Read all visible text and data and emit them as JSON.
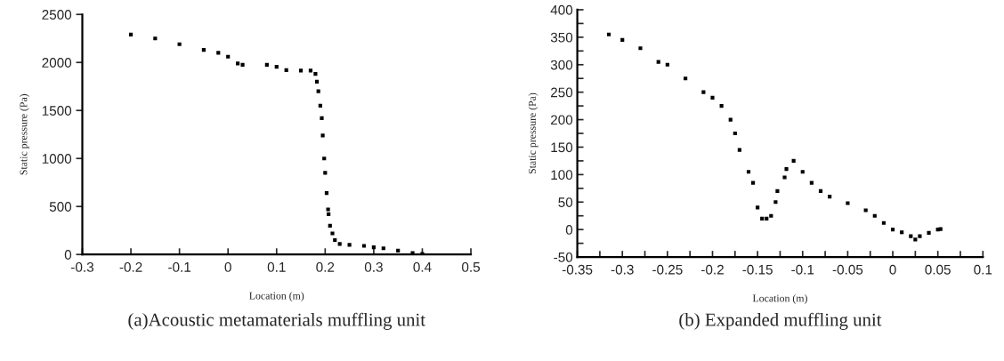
{
  "chart_data": [
    {
      "type": "scatter",
      "title": "(a)Acoustic metamaterials muffling unit",
      "xlabel": "Location (m)",
      "ylabel": "Static pressure (Pa)",
      "marker": "square",
      "grid": false,
      "xlim": [
        -0.3,
        0.5
      ],
      "xticks": [
        -0.3,
        -0.2,
        -0.1,
        0,
        0.1,
        0.2,
        0.3,
        0.4,
        0.5
      ],
      "ylim": [
        0,
        2500
      ],
      "yticks": [
        0,
        500,
        1000,
        1500,
        2000,
        2500
      ],
      "series": [
        {
          "color": "#000000",
          "x": [
            -0.2,
            -0.15,
            -0.1,
            -0.05,
            -0.02,
            0,
            0.02,
            0.03,
            0.08,
            0.1,
            0.12,
            0.15,
            0.17,
            0.18,
            0.183,
            0.186,
            0.19,
            0.193,
            0.195,
            0.198,
            0.2,
            0.203,
            0.206,
            0.207,
            0.21,
            0.215,
            0.22,
            0.23,
            0.25,
            0.28,
            0.3,
            0.32,
            0.35,
            0.38,
            0.4
          ],
          "values": [
            2290,
            2250,
            2190,
            2130,
            2100,
            2060,
            1990,
            1975,
            1975,
            1955,
            1920,
            1915,
            1915,
            1880,
            1800,
            1700,
            1550,
            1420,
            1240,
            1000,
            850,
            640,
            470,
            420,
            300,
            220,
            150,
            110,
            100,
            90,
            75,
            65,
            40,
            15,
            5
          ]
        }
      ]
    },
    {
      "type": "scatter",
      "title": "(b) Expanded muffling unit",
      "xlabel": "Location (m)",
      "ylabel": "Static pressure (Pa)",
      "marker": "square",
      "grid": false,
      "xlim": [
        -0.35,
        0.1
      ],
      "xticks": [
        -0.35,
        {
          "value": -0.325,
          "label": null
        },
        -0.3,
        {
          "value": -0.275,
          "label": null
        },
        -0.25,
        {
          "value": -0.225,
          "label": null
        },
        -0.2,
        {
          "value": -0.175,
          "label": null
        },
        -0.15,
        {
          "value": -0.125,
          "label": null
        },
        -0.1,
        {
          "value": -0.075,
          "label": null
        },
        -0.05,
        {
          "value": -0.025,
          "label": null
        },
        0,
        {
          "value": 0.025,
          "label": null
        },
        0.05,
        {
          "value": 0.075,
          "label": null
        },
        0.1
      ],
      "ylim": [
        -50,
        400
      ],
      "yticks": [
        -50,
        {
          "value": -25,
          "label": null
        },
        0,
        {
          "value": 25,
          "label": null
        },
        50,
        {
          "value": 75,
          "label": null
        },
        100,
        {
          "value": 125,
          "label": null
        },
        150,
        {
          "value": 175,
          "label": null
        },
        200,
        {
          "value": 225,
          "label": null
        },
        250,
        {
          "value": 275,
          "label": null
        },
        300,
        {
          "value": 325,
          "label": null
        },
        350,
        {
          "value": 375,
          "label": null
        },
        400
      ],
      "series": [
        {
          "color": "#000000",
          "x": [
            -0.315,
            -0.3,
            -0.28,
            -0.26,
            -0.25,
            -0.23,
            -0.21,
            -0.2,
            -0.19,
            -0.18,
            -0.175,
            -0.17,
            -0.16,
            -0.155,
            -0.15,
            -0.145,
            -0.14,
            -0.135,
            -0.13,
            -0.128,
            -0.12,
            -0.118,
            -0.11,
            -0.1,
            -0.09,
            -0.08,
            -0.07,
            -0.05,
            -0.03,
            -0.02,
            -0.01,
            0,
            0.01,
            0.02,
            0.025,
            0.03,
            0.04,
            0.05,
            0.053
          ],
          "values": [
            355,
            345,
            330,
            305,
            300,
            275,
            250,
            240,
            225,
            200,
            175,
            145,
            105,
            85,
            40,
            20,
            20,
            25,
            50,
            70,
            95,
            110,
            125,
            105,
            85,
            70,
            60,
            48,
            35,
            25,
            12,
            0,
            -5,
            -12,
            -18,
            -12,
            -6,
            0,
            1
          ]
        }
      ]
    }
  ]
}
